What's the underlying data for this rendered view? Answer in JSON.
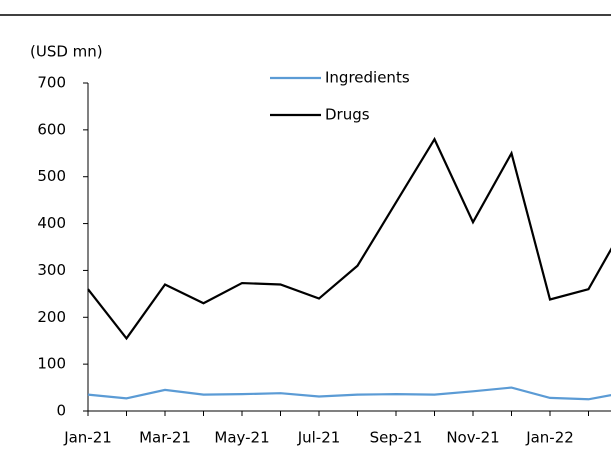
{
  "chart_data": {
    "type": "line",
    "y_axis_label": "(USD mn)",
    "categories": [
      "Jan-21",
      null,
      "Mar-21",
      null,
      "May-21",
      null,
      "Jul-21",
      null,
      "Sep-21",
      null,
      "Nov-21",
      null,
      "Jan-22",
      null,
      null
    ],
    "series": [
      {
        "name": "Ingredients",
        "color": "#5b9bd5",
        "values": [
          35,
          27,
          45,
          35,
          36,
          38,
          31,
          35,
          36,
          35,
          42,
          50,
          28,
          25,
          40
        ]
      },
      {
        "name": "Drugs",
        "color": "#000000",
        "values": [
          260,
          155,
          270,
          230,
          273,
          270,
          240,
          310,
          445,
          580,
          403,
          550,
          238,
          260,
          405
        ]
      }
    ],
    "ylim": [
      0,
      700
    ],
    "yticks": [
      0,
      100,
      200,
      300,
      400,
      500,
      600,
      700
    ],
    "grid": false
  }
}
